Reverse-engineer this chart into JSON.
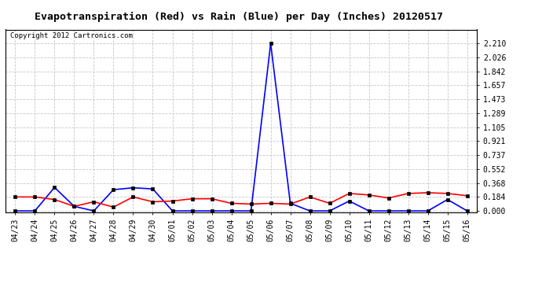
{
  "title": "Evapotranspiration (Red) vs Rain (Blue) per Day (Inches) 20120517",
  "copyright": "Copyright 2012 Cartronics.com",
  "dates": [
    "04/23",
    "04/24",
    "04/25",
    "04/26",
    "04/27",
    "04/28",
    "04/29",
    "04/30",
    "05/01",
    "05/02",
    "05/03",
    "05/04",
    "05/05",
    "05/06",
    "05/07",
    "05/08",
    "05/09",
    "05/10",
    "05/11",
    "05/12",
    "05/13",
    "05/14",
    "05/15",
    "05/16"
  ],
  "red_et": [
    0.184,
    0.184,
    0.15,
    0.06,
    0.12,
    0.05,
    0.184,
    0.12,
    0.13,
    0.16,
    0.16,
    0.1,
    0.09,
    0.1,
    0.09,
    0.184,
    0.1,
    0.23,
    0.21,
    0.17,
    0.23,
    0.24,
    0.23,
    0.2
  ],
  "blue_rain": [
    0.0,
    0.0,
    0.31,
    0.06,
    0.0,
    0.28,
    0.305,
    0.29,
    0.0,
    0.0,
    0.0,
    0.0,
    0.0,
    2.21,
    0.1,
    0.0,
    0.0,
    0.13,
    0.0,
    0.0,
    0.0,
    0.0,
    0.15,
    0.0
  ],
  "ylim": [
    -0.02,
    2.394
  ],
  "yticks": [
    0.0,
    0.184,
    0.368,
    0.552,
    0.737,
    0.921,
    1.105,
    1.289,
    1.473,
    1.657,
    1.842,
    2.026,
    2.21
  ],
  "red_color": "#ff0000",
  "blue_color": "#0000ff",
  "bg_color": "#ffffff",
  "grid_color": "#c8c8c8",
  "title_fontsize": 9.5,
  "copyright_fontsize": 6.5,
  "tick_fontsize": 7,
  "ytick_fontsize": 7
}
